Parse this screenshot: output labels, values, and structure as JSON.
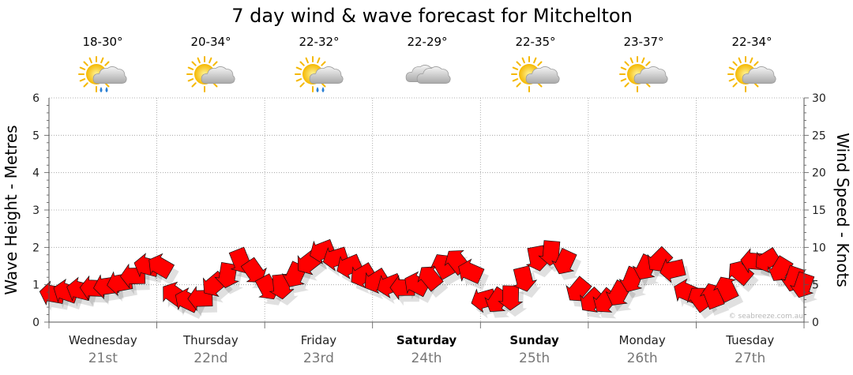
{
  "chart_data": {
    "type": "line",
    "title": "7 day wind & wave forecast for Mitchelton",
    "ylabel_left": "Wave Height - Metres",
    "ylabel_right": "Wind Speed - Knots",
    "ylim_left": [
      0,
      6
    ],
    "ylim_right": [
      0,
      30
    ],
    "left_ticks": [
      "0",
      "1",
      "2",
      "3",
      "4",
      "5",
      "6"
    ],
    "right_ticks": [
      "0",
      "5",
      "10",
      "15",
      "20",
      "25",
      "30"
    ],
    "grid": true,
    "days": [
      {
        "name": "Wednesday",
        "date": "21st",
        "temp": "18-30°",
        "icon": "sun-cloud-rain-icon",
        "bold": false
      },
      {
        "name": "Thursday",
        "date": "22nd",
        "temp": "20-34°",
        "icon": "sun-cloud-icon",
        "bold": false
      },
      {
        "name": "Friday",
        "date": "23rd",
        "temp": "22-32°",
        "icon": "sun-cloud-rain-icon",
        "bold": false
      },
      {
        "name": "Saturday",
        "date": "24th",
        "temp": "22-29°",
        "icon": "cloud-icon",
        "bold": true
      },
      {
        "name": "Sunday",
        "date": "25th",
        "temp": "22-35°",
        "icon": "sun-cloud-icon",
        "bold": true
      },
      {
        "name": "Monday",
        "date": "26th",
        "temp": "23-37°",
        "icon": "sun-cloud-icon",
        "bold": false
      },
      {
        "name": "Tuesday",
        "date": "27th",
        "temp": "22-34°",
        "icon": "sun-cloud-icon",
        "bold": false
      }
    ],
    "series": [
      {
        "name": "Wind Speed",
        "axis": "right",
        "color": "#ff0000",
        "x_days": [
          0.0,
          0.25,
          0.5,
          0.7,
          0.85,
          1.0,
          1.15,
          1.35,
          1.5,
          1.65,
          1.8,
          1.95,
          2.15,
          2.3,
          2.5,
          2.7,
          2.9,
          3.1,
          3.3,
          3.5,
          3.7,
          3.85,
          4.0,
          4.15,
          4.3,
          4.45,
          4.6,
          4.75,
          4.9,
          5.05,
          5.2,
          5.4,
          5.6,
          5.75,
          5.9,
          6.05,
          6.25,
          6.45,
          6.6,
          6.75,
          6.9,
          7.0
        ],
        "values": [
          3.8,
          4.3,
          4.8,
          5.5,
          7.5,
          7.5,
          3.0,
          2.8,
          5.0,
          6.5,
          9.0,
          4.5,
          4.8,
          7.0,
          9.5,
          8.0,
          6.0,
          5.0,
          4.5,
          6.0,
          8.5,
          7.5,
          3.0,
          2.8,
          3.5,
          8.0,
          9.5,
          8.0,
          3.5,
          2.5,
          3.0,
          6.0,
          8.5,
          7.0,
          3.5,
          3.0,
          4.5,
          8.0,
          8.5,
          7.0,
          5.5,
          4.5
        ]
      }
    ]
  },
  "watermark": "© seabreeze.com.au"
}
